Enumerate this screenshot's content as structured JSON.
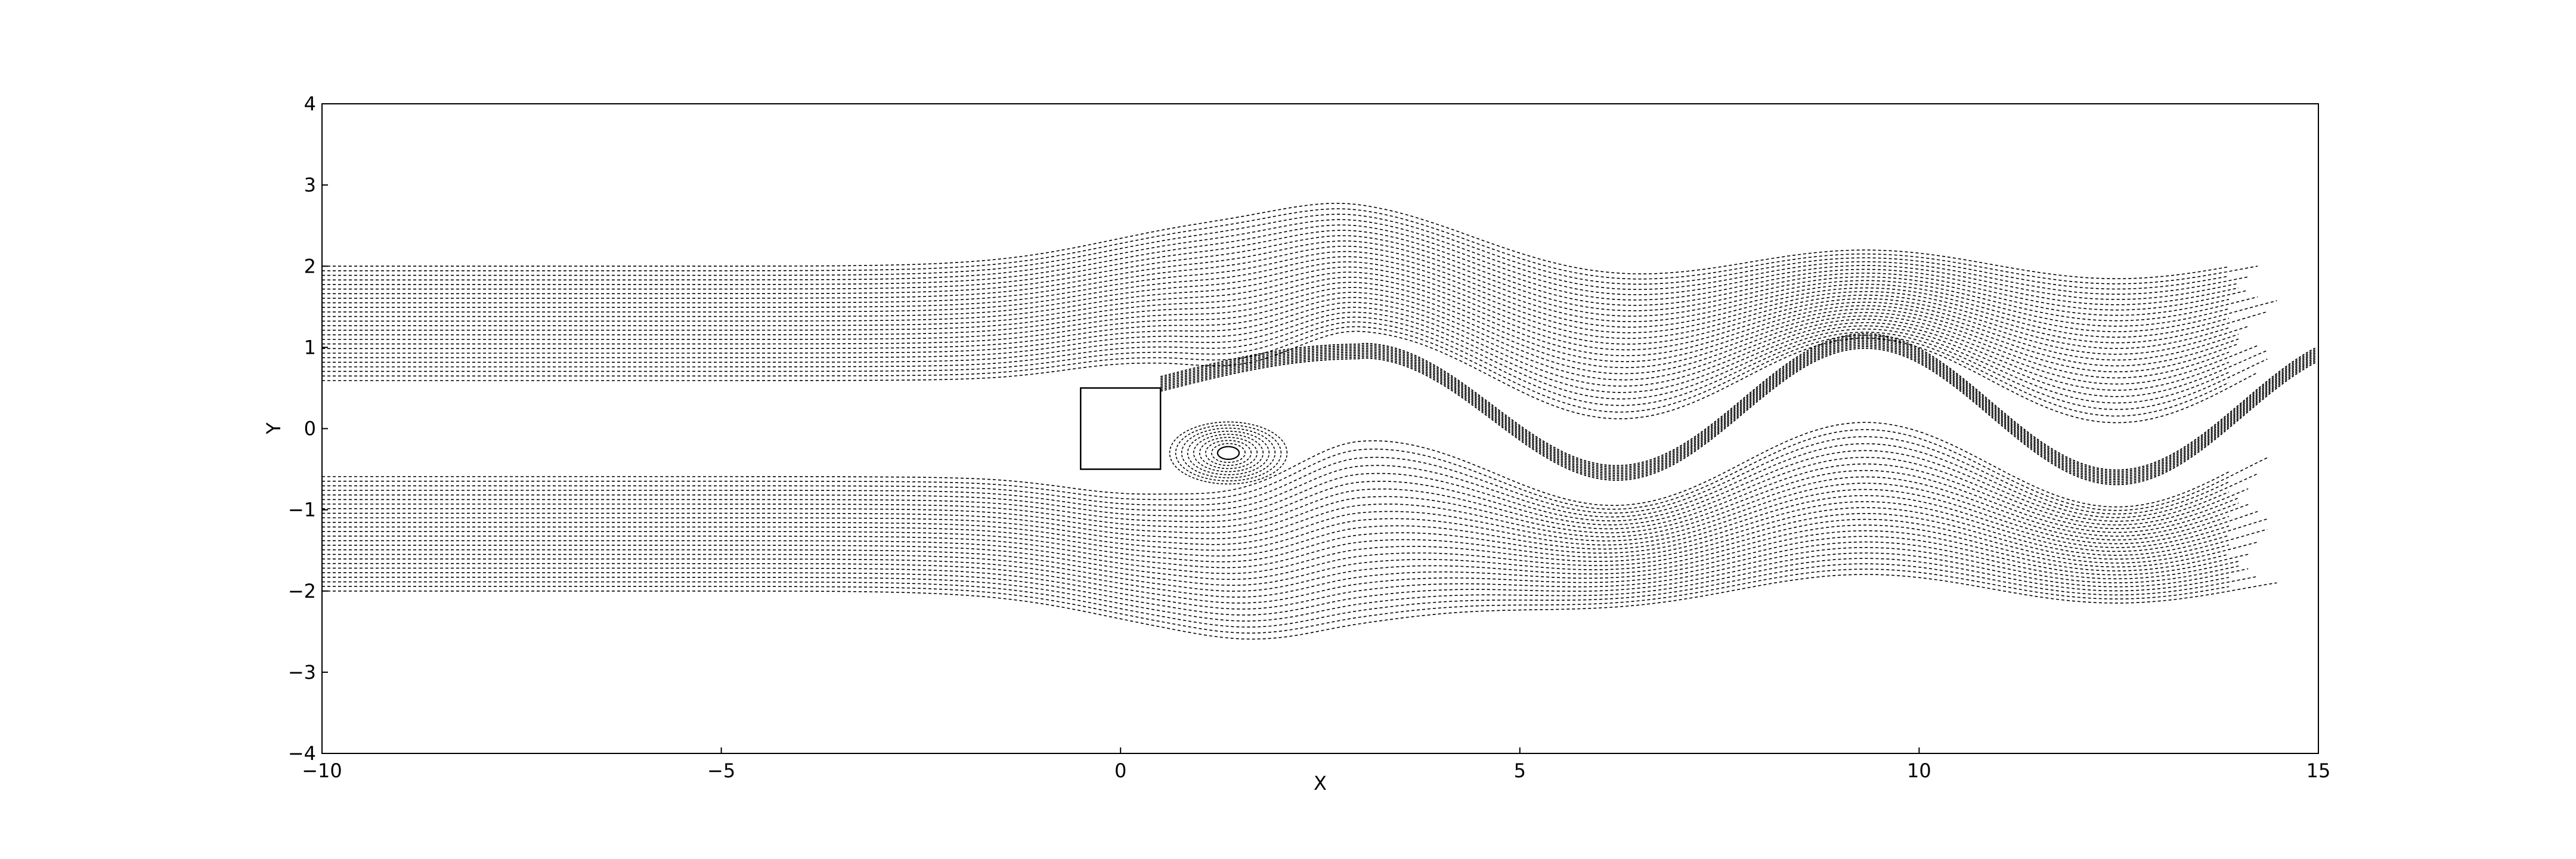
{
  "chart_data": {
    "type": "line",
    "title": "",
    "xlabel": "X",
    "ylabel": "Y",
    "xlim": [
      -10,
      15
    ],
    "ylim": [
      -4,
      4
    ],
    "xticks": [
      -10,
      -5,
      0,
      5,
      10,
      15
    ],
    "xtick_labels": [
      "−10",
      "−5",
      "0",
      "5",
      "10",
      "15"
    ],
    "yticks": [
      -4,
      -3,
      -2,
      -1,
      0,
      1,
      2,
      3,
      4
    ],
    "ytick_labels": [
      "−4",
      "−3",
      "−2",
      "−1",
      "0",
      "1",
      "2",
      "3",
      "4"
    ],
    "grid": false,
    "legend": "none",
    "obstacle": {
      "shape": "square",
      "x": [
        -0.5,
        0.5
      ],
      "y": [
        -0.5,
        0.5
      ]
    },
    "seed_line": {
      "x": -10,
      "y_range": [
        -2,
        2
      ]
    },
    "series_style": {
      "color": "#000000",
      "linestyle": "dashed"
    },
    "features": {
      "wake_vortex_center": [
        1.35,
        -0.3
      ],
      "shear_layer_peaks": [
        [
          3.0,
          0.95
        ],
        [
          9.3,
          0.87
        ]
      ],
      "shear_layer_troughs": [
        [
          5.8,
          -0.8
        ],
        [
          13.0,
          -0.68
        ]
      ],
      "outer_envelope_upper": [
        [
          -10,
          2.0
        ],
        [
          -5,
          2.05
        ],
        [
          0,
          2.5
        ],
        [
          2.5,
          2.65
        ],
        [
          6,
          2.35
        ],
        [
          8.8,
          2.65
        ],
        [
          14.5,
          2.25
        ]
      ],
      "outer_envelope_lower": [
        [
          -10,
          -2.0
        ],
        [
          -5,
          -2.05
        ],
        [
          0,
          -2.45
        ],
        [
          3,
          -2.6
        ],
        [
          6.5,
          -2.6
        ],
        [
          9,
          -2.0
        ],
        [
          12.5,
          -2.6
        ],
        [
          14.8,
          -2.3
        ]
      ]
    }
  }
}
